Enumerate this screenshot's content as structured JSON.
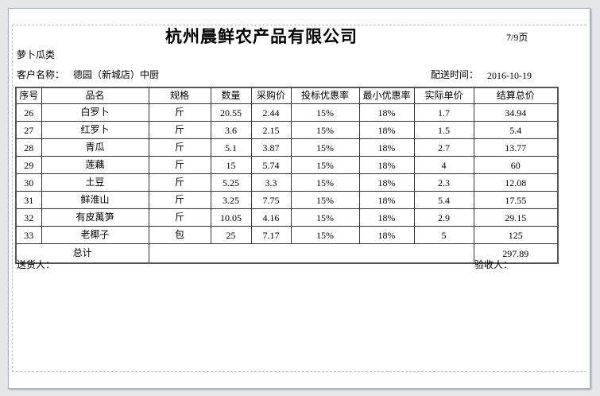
{
  "title": "杭州晨鲜农产品有限公司",
  "page_indicator": "7/9页",
  "category": "萝卜瓜类",
  "customer_label": "客户名称：",
  "customer_name": "德园（新城店）中厨",
  "delivery_time_label": "配送时间：",
  "delivery_date": "2016-10-19",
  "table": {
    "headers": [
      "序号",
      "品名",
      "规格",
      "数量",
      "采购价",
      "投标优惠率",
      "最小优惠率",
      "实际单价",
      "结算总价"
    ],
    "rows": [
      [
        "26",
        "白罗卜",
        "斤",
        "20.55",
        "2.44",
        "15%",
        "18%",
        "1.7",
        "34.94"
      ],
      [
        "27",
        "红罗卜",
        "斤",
        "3.6",
        "2.15",
        "15%",
        "18%",
        "1.5",
        "5.4"
      ],
      [
        "28",
        "青瓜",
        "斤",
        "5.1",
        "3.87",
        "15%",
        "18%",
        "2.7",
        "13.77"
      ],
      [
        "29",
        "莲藕",
        "斤",
        "15",
        "5.74",
        "15%",
        "18%",
        "4",
        "60"
      ],
      [
        "30",
        "土豆",
        "斤",
        "5.25",
        "3.3",
        "15%",
        "18%",
        "2.3",
        "12.08"
      ],
      [
        "31",
        "鲜淮山",
        "斤",
        "3.25",
        "7.75",
        "15%",
        "18%",
        "5.4",
        "17.55"
      ],
      [
        "32",
        "有皮萬笋",
        "斤",
        "10.05",
        "4.16",
        "15%",
        "18%",
        "2.9",
        "29.15"
      ],
      [
        "33",
        "老椰子",
        "包",
        "25",
        "7.17",
        "15%",
        "18%",
        "5",
        "125"
      ]
    ],
    "total_label": "总计",
    "total_value": "297.89"
  },
  "deliverer_label": "送货人：",
  "receiver_label": "验收人："
}
